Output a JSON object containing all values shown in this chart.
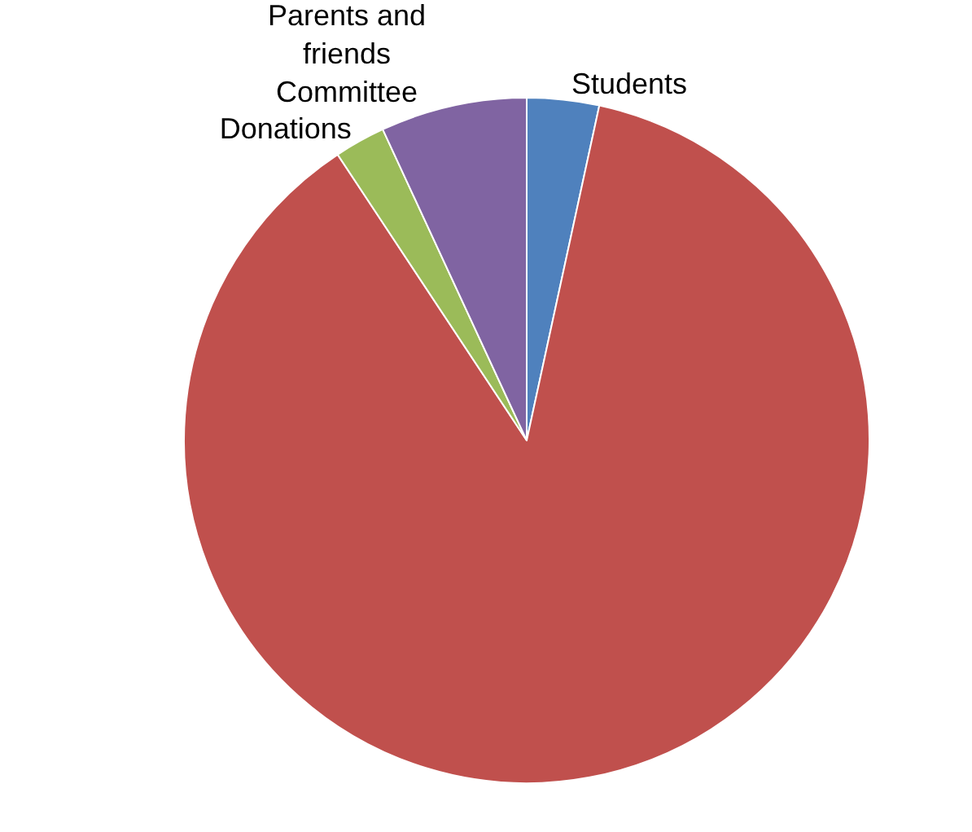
{
  "chart_data": {
    "type": "pie",
    "categories": [
      "Students",
      null,
      "Donations",
      "Parents and friends Committee"
    ],
    "values": [
      3.4,
      87.3,
      2.4,
      6.9
    ],
    "colors": [
      "#4f81bd",
      "#c0504d",
      "#9bbb59",
      "#8064a2"
    ],
    "legend": false
  }
}
